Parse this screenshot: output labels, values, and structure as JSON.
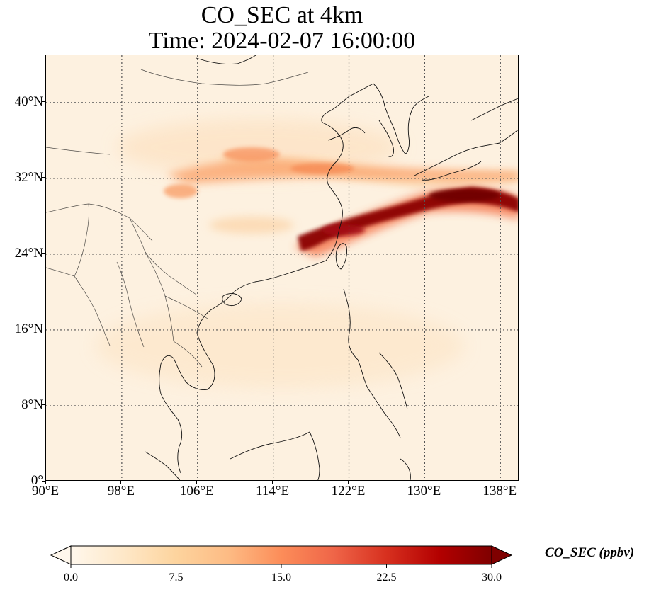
{
  "title": {
    "line1": "CO_SEC at 4km",
    "line2": "Time: 2024-02-07 16:00:00"
  },
  "map": {
    "projection": "PlateCarree",
    "lon_range": [
      90,
      140
    ],
    "lat_range": [
      0,
      45
    ],
    "gridlines": "dotted",
    "coastlines": true,
    "borders": true,
    "lat_ticks": [
      {
        "value": 40,
        "label": "40°N"
      },
      {
        "value": 32,
        "label": "32°N"
      },
      {
        "value": 24,
        "label": "24°N"
      },
      {
        "value": 16,
        "label": "16°N"
      },
      {
        "value": 8,
        "label": "8°N"
      },
      {
        "value": 0,
        "label": "0°"
      }
    ],
    "lon_ticks": [
      {
        "value": 90,
        "label": "90°E"
      },
      {
        "value": 98,
        "label": "98°E"
      },
      {
        "value": 106,
        "label": "106°E"
      },
      {
        "value": 114,
        "label": "114°E"
      },
      {
        "value": 122,
        "label": "122°E"
      },
      {
        "value": 130,
        "label": "130°E"
      },
      {
        "value": 138,
        "label": "138°E"
      }
    ]
  },
  "colorbar": {
    "label": "CO_SEC (ppbv)",
    "min": 0.0,
    "max": 30.0,
    "colormap": "OrRd",
    "extend": "both",
    "orientation": "horizontal",
    "ticks": [
      "0.0",
      "7.5",
      "15.0",
      "22.5",
      "30.0"
    ],
    "colors": [
      "#fff7ec",
      "#fee8c8",
      "#fdd49e",
      "#fdbb84",
      "#fc8d59",
      "#ef6548",
      "#d7301f",
      "#b30000",
      "#7f0000"
    ]
  }
}
